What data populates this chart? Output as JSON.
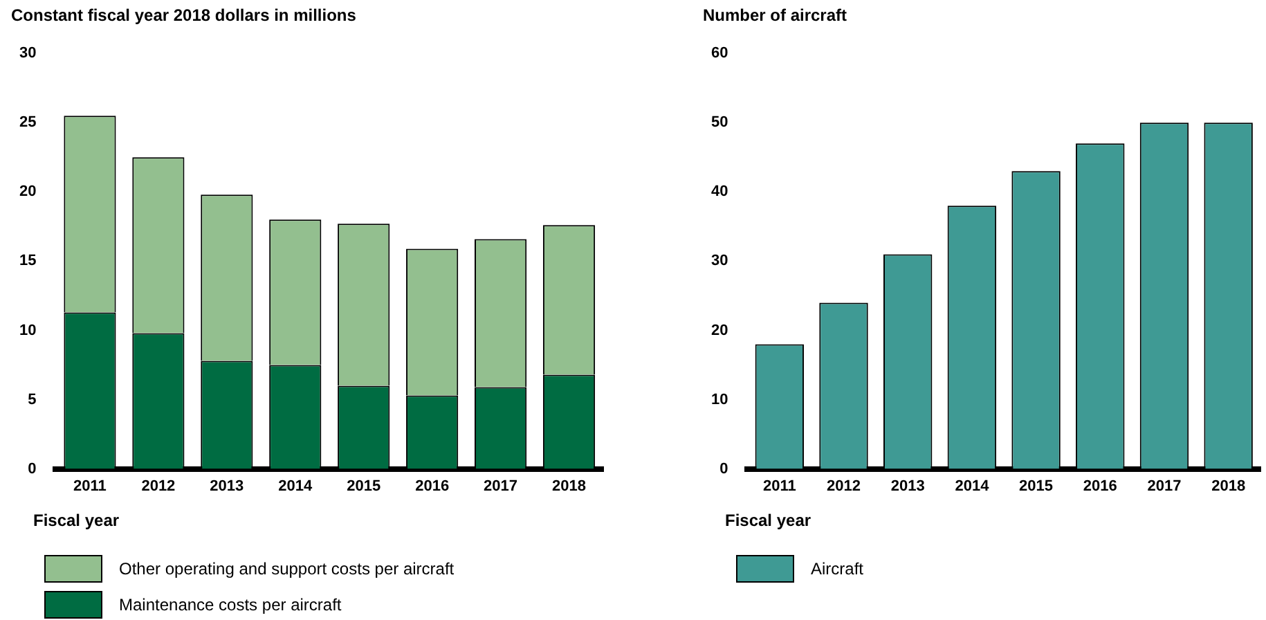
{
  "chart_data": [
    {
      "type": "bar",
      "stacked": true,
      "ylabel": "Constant fiscal year 2018 dollars in millions",
      "xlabel": "Fiscal year",
      "categories": [
        "2011",
        "2012",
        "2013",
        "2014",
        "2015",
        "2016",
        "2017",
        "2018"
      ],
      "series": [
        {
          "name": "Maintenance costs per aircraft",
          "color": "#006c42",
          "values": [
            11.3,
            9.8,
            7.8,
            7.5,
            6.0,
            5.3,
            5.9,
            6.8
          ]
        },
        {
          "name": "Other operating and support costs per aircraft",
          "color": "#93bf8f",
          "values": [
            14.2,
            12.7,
            12.0,
            10.5,
            11.7,
            10.6,
            10.7,
            10.8
          ]
        }
      ],
      "ylim": [
        0,
        30
      ],
      "yticks": [
        0,
        5,
        10,
        15,
        20,
        25,
        30
      ],
      "grid": false,
      "legend": "bottom"
    },
    {
      "type": "bar",
      "ylabel": "Number of aircraft",
      "xlabel": "Fiscal year",
      "categories": [
        "2011",
        "2012",
        "2013",
        "2014",
        "2015",
        "2016",
        "2017",
        "2018"
      ],
      "series": [
        {
          "name": "Aircraft",
          "color": "#3f9a94",
          "values": [
            18,
            24,
            31,
            38,
            43,
            47,
            50,
            50
          ]
        }
      ],
      "ylim": [
        0,
        60
      ],
      "yticks": [
        0,
        10,
        20,
        30,
        40,
        50,
        60
      ],
      "grid": false,
      "legend": "bottom"
    }
  ]
}
